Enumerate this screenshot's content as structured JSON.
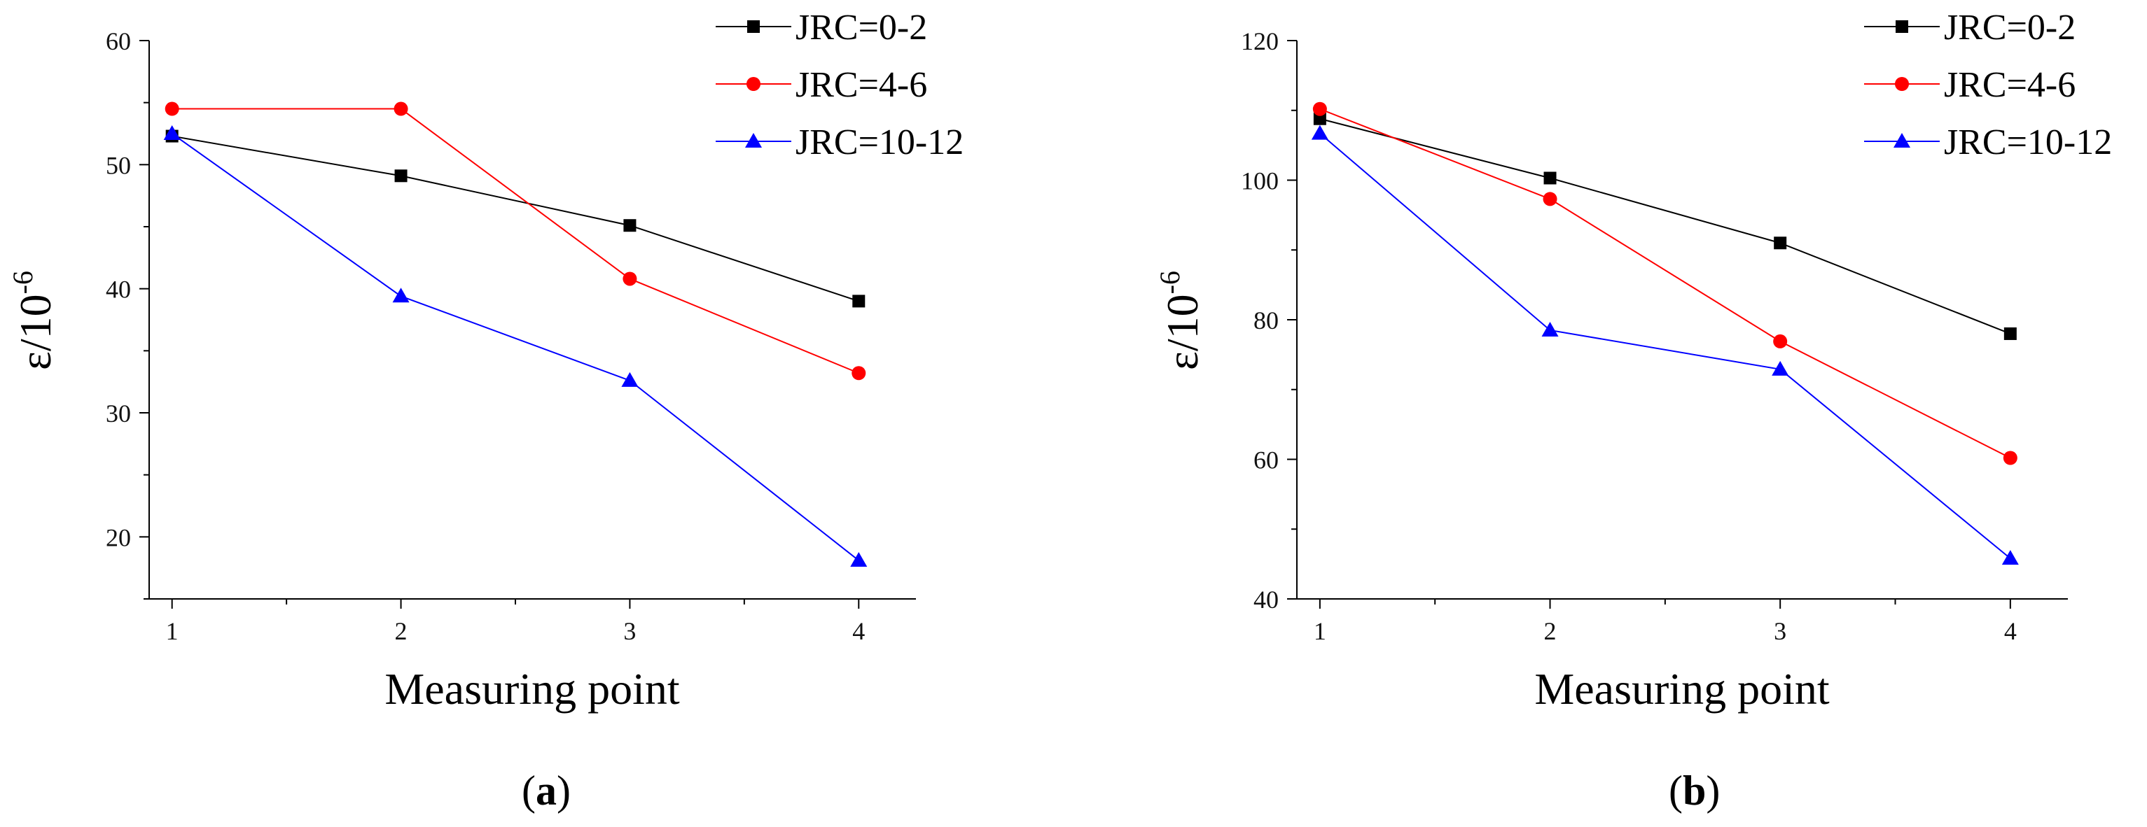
{
  "chart_data": [
    {
      "type": "line",
      "panel_label": "a",
      "xlabel": "Measuring point",
      "ylabel_base": "ε/10",
      "ylabel_exp": "-6",
      "categories": [
        "1",
        "2",
        "3",
        "4"
      ],
      "x": [
        1,
        2,
        3,
        4
      ],
      "xlim": [
        0.9,
        4.25
      ],
      "xticks": [
        1,
        2,
        3,
        4
      ],
      "ylim": [
        15,
        60
      ],
      "yticks": [
        20,
        30,
        40,
        50,
        60
      ],
      "grid": false,
      "legend_position": "top-right",
      "series": [
        {
          "name": "JRC=0-2",
          "color": "#000000",
          "marker": "square",
          "values": [
            52.3,
            49.1,
            45.1,
            39.0
          ]
        },
        {
          "name": "JRC=4-6",
          "color": "#ff0000",
          "marker": "circle",
          "values": [
            54.5,
            54.5,
            40.8,
            33.2
          ]
        },
        {
          "name": "JRC=10-12",
          "color": "#0000ff",
          "marker": "triangle",
          "values": [
            52.5,
            39.4,
            32.6,
            18.1
          ]
        }
      ]
    },
    {
      "type": "line",
      "panel_label": "b",
      "xlabel": "Measuring point",
      "ylabel_base": "ε/10",
      "ylabel_exp": "-6",
      "categories": [
        "1",
        "2",
        "3",
        "4"
      ],
      "x": [
        1,
        2,
        3,
        4
      ],
      "xlim": [
        0.9,
        4.25
      ],
      "xticks": [
        1,
        2,
        3,
        4
      ],
      "ylim": [
        40,
        120
      ],
      "yticks": [
        40,
        60,
        80,
        100,
        120
      ],
      "grid": false,
      "legend_position": "top-right",
      "series": [
        {
          "name": "JRC=0-2",
          "color": "#000000",
          "marker": "square",
          "values": [
            108.8,
            100.3,
            91.0,
            78.0
          ]
        },
        {
          "name": "JRC=4-6",
          "color": "#ff0000",
          "marker": "circle",
          "values": [
            110.2,
            97.3,
            76.9,
            60.2
          ]
        },
        {
          "name": "JRC=10-12",
          "color": "#0000ff",
          "marker": "triangle",
          "values": [
            106.7,
            78.5,
            72.9,
            45.8
          ]
        }
      ]
    }
  ]
}
